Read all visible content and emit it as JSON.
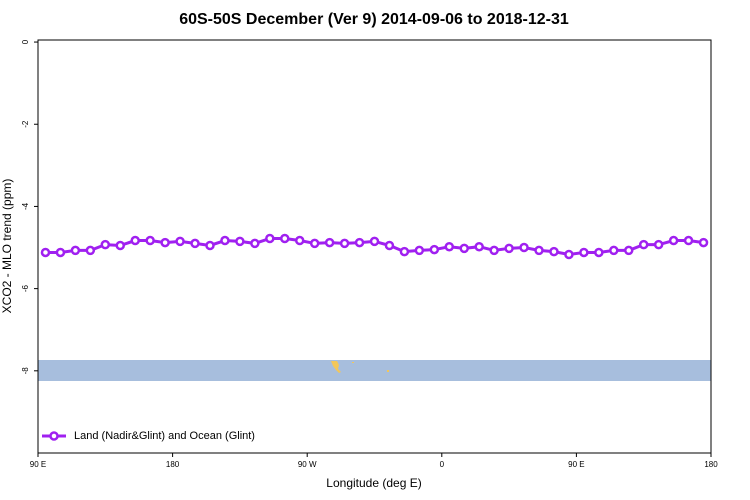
{
  "chart_data": {
    "type": "line",
    "title": "60S-50S December (Ver 9)   2014-09-06 to 2018-12-31",
    "x_label": "Longitude (deg E)",
    "y_label": "XCO2 - MLO trend (ppm)",
    "x": [
      95,
      105,
      115,
      125,
      135,
      145,
      155,
      165,
      175,
      185,
      195,
      205,
      215,
      225,
      235,
      245,
      255,
      265,
      275,
      285,
      295,
      305,
      315,
      325,
      335,
      345,
      355,
      365,
      375,
      385,
      395,
      405,
      415,
      425,
      435,
      445,
      455,
      465,
      475,
      485,
      495,
      505,
      515,
      525,
      535
    ],
    "series": [
      {
        "name": "Land (Nadir&Glint) and Ocean (Glint)",
        "color": "#a020f0",
        "values": [
          -5.12,
          -5.12,
          -5.07,
          -5.07,
          -4.93,
          -4.95,
          -4.83,
          -4.83,
          -4.88,
          -4.85,
          -4.9,
          -4.95,
          -4.83,
          -4.85,
          -4.9,
          -4.78,
          -4.78,
          -4.83,
          -4.9,
          -4.88,
          -4.9,
          -4.88,
          -4.85,
          -4.95,
          -5.1,
          -5.07,
          -5.05,
          -4.98,
          -5.02,
          -4.98,
          -5.07,
          -5.02,
          -5.0,
          -5.07,
          -5.1,
          -5.17,
          -5.12,
          -5.12,
          -5.07,
          -5.07,
          -4.93,
          -4.93,
          -4.83,
          -4.83,
          -4.88
        ]
      }
    ],
    "xlim": [
      90,
      540
    ],
    "xticks": [
      {
        "value": 90,
        "label": "90 E"
      },
      180,
      {
        "value": 270,
        "label": "90 W"
      },
      {
        "value": 360,
        "label": "0"
      },
      {
        "value": 450,
        "label": "90 E"
      },
      {
        "value": 540,
        "label": "180"
      }
    ],
    "ylim": [
      -10,
      0.05
    ],
    "yticks": [
      0,
      -2,
      -4,
      -6,
      -8
    ],
    "legend": "bottom-left"
  }
}
